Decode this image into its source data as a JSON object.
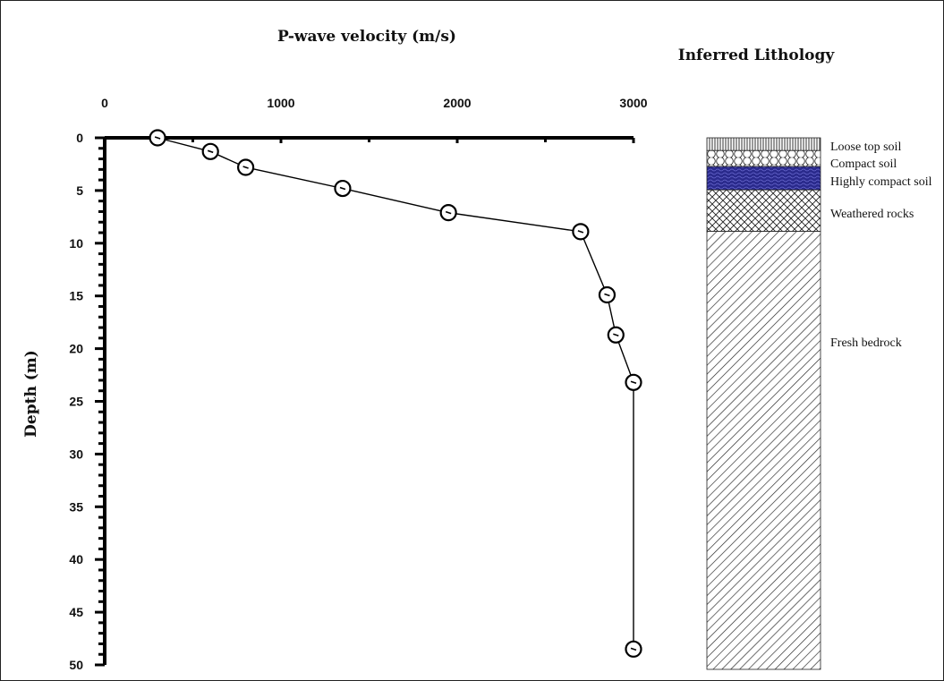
{
  "chart_data": {
    "type": "line",
    "xlabel": "P-wave velocity (m/s)",
    "ylabel": "Depth (m)",
    "xlim": [
      0,
      3000
    ],
    "ylim": [
      0,
      50
    ],
    "y_inverted": true,
    "x_axis_position": "top",
    "x_ticks": [
      "0",
      "1000",
      "2000",
      "3000"
    ],
    "y_ticks": [
      "0",
      "5",
      "10",
      "15",
      "20",
      "25",
      "30",
      "35",
      "40",
      "45",
      "50"
    ],
    "grid": false,
    "legend": "none",
    "series": [
      {
        "marker": "circle",
        "points": [
          {
            "x": 300,
            "y": 0
          },
          {
            "x": 600,
            "y": 1.3
          },
          {
            "x": 800,
            "y": 2.8
          },
          {
            "x": 1350,
            "y": 4.8
          },
          {
            "x": 1950,
            "y": 7.1
          },
          {
            "x": 2700,
            "y": 8.9
          },
          {
            "x": 2850,
            "y": 14.9
          },
          {
            "x": 2900,
            "y": 18.7
          },
          {
            "x": 3000,
            "y": 23.2
          },
          {
            "x": 3000,
            "y": 48.5
          }
        ]
      }
    ]
  },
  "lithology": {
    "title": "Inferred Lithology",
    "layers": [
      {
        "label": "Loose top soil",
        "top": 0,
        "bottom": 1.2,
        "pattern": "vertical-lines"
      },
      {
        "label": "Compact soil",
        "top": 1.2,
        "bottom": 2.7,
        "pattern": "circles"
      },
      {
        "label": "Highly compact soil",
        "top": 2.7,
        "bottom": 4.9,
        "pattern": "blue-dense",
        "color": "#2a2a8c"
      },
      {
        "label": "Weathered rocks",
        "top": 4.9,
        "bottom": 8.8,
        "pattern": "cross-hatch"
      },
      {
        "label": "Fresh bedrock",
        "top": 8.8,
        "bottom": 50,
        "pattern": "diagonal-lines"
      }
    ]
  }
}
